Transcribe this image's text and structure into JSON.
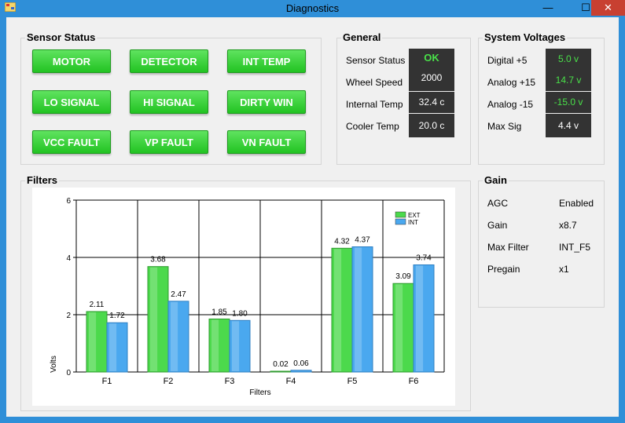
{
  "window": {
    "title": "Diagnostics",
    "min_glyph": "—",
    "max_glyph": "☐",
    "close_glyph": "✕"
  },
  "sensor_status": {
    "title": "Sensor Status",
    "buttons": [
      "MOTOR",
      "DETECTOR",
      "INT TEMP",
      "LO SIGNAL",
      "HI SIGNAL",
      "DIRTY WIN",
      "VCC FAULT",
      "VP FAULT",
      "VN FAULT"
    ]
  },
  "general": {
    "title": "General",
    "rows": [
      {
        "label": "Sensor Status",
        "value": "OK",
        "color": "#49e149"
      },
      {
        "label": "Wheel Speed",
        "value": "2000",
        "color": "#ffffff"
      },
      {
        "label": "Internal Temp",
        "value": "32.4 c",
        "color": "#ffffff"
      },
      {
        "label": "Cooler Temp",
        "value": "20.0 c",
        "color": "#ffffff"
      }
    ]
  },
  "system_voltages": {
    "title": "System Voltages",
    "rows": [
      {
        "label": "Digital +5",
        "value": "5.0 v",
        "color": "#49e149"
      },
      {
        "label": "Analog +15",
        "value": "14.7 v",
        "color": "#49e149"
      },
      {
        "label": "Analog -15",
        "value": "-15.0 v",
        "color": "#49e149"
      },
      {
        "label": "Max Sig",
        "value": "4.4 v",
        "color": "#ffffff"
      }
    ]
  },
  "gain": {
    "title": "Gain",
    "rows": [
      {
        "label": "AGC",
        "value": "Enabled"
      },
      {
        "label": "Gain",
        "value": "x8.7"
      },
      {
        "label": "Max Filter",
        "value": "INT_F5"
      },
      {
        "label": "Pregain",
        "value": "x1"
      }
    ]
  },
  "filters": {
    "title": "Filters"
  },
  "chart_data": {
    "type": "bar",
    "categories": [
      "F1",
      "F2",
      "F3",
      "F4",
      "F5",
      "F6"
    ],
    "series": [
      {
        "name": "EXT",
        "values": [
          2.11,
          3.68,
          1.85,
          0.02,
          4.32,
          3.09
        ],
        "labels": [
          "2.11",
          "3.68",
          "1.85",
          "0.02",
          "4.32",
          "3.09"
        ],
        "color": "#4cd94c"
      },
      {
        "name": "INT",
        "values": [
          1.72,
          2.47,
          1.8,
          0.06,
          4.37,
          3.74
        ],
        "labels": [
          "1.72",
          "2.47",
          "1.80",
          "0.06",
          "4.37",
          "3.74"
        ],
        "color": "#4aa8ef"
      }
    ],
    "xlabel": "Filters",
    "ylabel": "Volts",
    "ylim": [
      0,
      6
    ],
    "yticks": [
      "0",
      "2",
      "4",
      "6"
    ],
    "grid": true,
    "legend": "top-right"
  }
}
